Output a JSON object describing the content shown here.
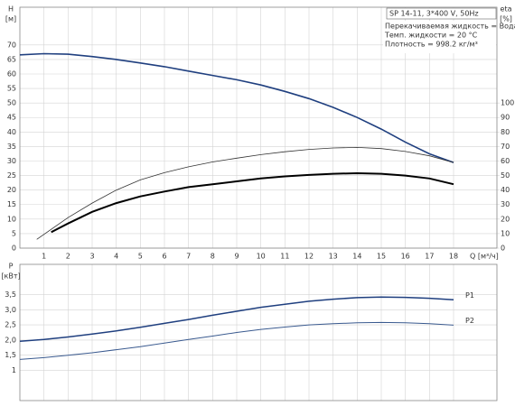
{
  "chart_data": [
    {
      "type": "line",
      "title": "SP 14-11, 3*400 V, 50Hz",
      "annotations": [
        "Перекачиваемая жидкость = Вода",
        "Темп. жидкости = 20 °C",
        "Плотность = 998.2 кг/м³"
      ],
      "ylabel": "H",
      "ylabel_unit": "[м]",
      "y2label": "eta",
      "y2label_unit": "[%]",
      "xlabel": "Q [м³/ч]",
      "xlim": [
        0,
        19.8
      ],
      "xticks": [
        1,
        2,
        3,
        4,
        5,
        6,
        7,
        8,
        9,
        10,
        11,
        12,
        13,
        14,
        15,
        16,
        17,
        18
      ],
      "ylim": [
        0,
        83
      ],
      "yticks": [
        0,
        5,
        10,
        15,
        20,
        25,
        30,
        35,
        40,
        45,
        50,
        55,
        60,
        65,
        70
      ],
      "y2lim": [
        0,
        166
      ],
      "y2ticks": [
        0,
        10,
        20,
        30,
        40,
        50,
        60,
        70,
        80,
        90,
        100
      ],
      "grid": true,
      "show_xtick_labels": true,
      "series": [
        {
          "color": "#1f3f7f",
          "line_width": 1.6,
          "axis": "y",
          "x": [
            0,
            1,
            2,
            3,
            4,
            5,
            6,
            7,
            8,
            9,
            10,
            11,
            12,
            13,
            14,
            15,
            16,
            17,
            18
          ],
          "values": [
            66.6,
            67,
            66.8,
            66,
            65,
            63.8,
            62.5,
            61,
            59.5,
            58,
            56.2,
            54,
            51.5,
            48.5,
            45,
            41,
            36.5,
            32.5,
            29.5
          ]
        },
        {
          "color": "#333333",
          "line_width": 0.8,
          "axis": "y2",
          "x": [
            0.7,
            2,
            3,
            4,
            5,
            6,
            7,
            8,
            9,
            10,
            11,
            12,
            13,
            14,
            15,
            16,
            17,
            18
          ],
          "values": [
            6,
            21,
            31,
            40,
            47,
            52,
            56,
            59.4,
            62,
            64.4,
            66.4,
            68,
            69,
            69.4,
            68.6,
            66.6,
            63.6,
            59
          ]
        },
        {
          "color": "#000000",
          "line_width": 2,
          "axis": "y2",
          "x": [
            1.3,
            2,
            3,
            4,
            5,
            6,
            7,
            8,
            9,
            10,
            11,
            12,
            13,
            14,
            15,
            16,
            17,
            18
          ],
          "values": [
            11,
            17,
            25,
            31,
            35.6,
            39,
            42,
            44,
            46,
            48,
            49.4,
            50.4,
            51.2,
            51.6,
            51.2,
            50,
            48,
            44
          ]
        }
      ]
    },
    {
      "type": "line",
      "ylabel": "P",
      "ylabel_unit": "[кВт]",
      "xlim": [
        0,
        19.8
      ],
      "xticks": [
        1,
        2,
        3,
        4,
        5,
        6,
        7,
        8,
        9,
        10,
        11,
        12,
        13,
        14,
        15,
        16,
        17,
        18
      ],
      "ylim": [
        0,
        4.5
      ],
      "yticks": [
        1,
        {
          "value": 1.5,
          "label": "1,5"
        },
        {
          "value": 2,
          "label": "2,0"
        },
        {
          "value": 2.5,
          "label": "2,5"
        },
        {
          "value": 3,
          "label": "3,0"
        },
        {
          "value": 3.5,
          "label": "3,5"
        }
      ],
      "grid": true,
      "show_xtick_labels": false,
      "series": [
        {
          "name": "P1",
          "color": "#1f3f7f",
          "line_width": 1.5,
          "x": [
            0,
            1,
            2,
            3,
            4,
            5,
            6,
            7,
            8,
            9,
            10,
            11,
            12,
            13,
            14,
            15,
            16,
            17,
            18
          ],
          "values": [
            1.96,
            2.02,
            2.1,
            2.2,
            2.3,
            2.42,
            2.55,
            2.68,
            2.82,
            2.95,
            3.08,
            3.18,
            3.28,
            3.35,
            3.4,
            3.42,
            3.41,
            3.38,
            3.33
          ]
        },
        {
          "name": "P2",
          "color": "#3a5a8f",
          "line_width": 1,
          "x": [
            0,
            1,
            2,
            3,
            4,
            5,
            6,
            7,
            8,
            9,
            10,
            11,
            12,
            13,
            14,
            15,
            16,
            17,
            18
          ],
          "values": [
            1.36,
            1.42,
            1.5,
            1.58,
            1.68,
            1.78,
            1.9,
            2.02,
            2.13,
            2.25,
            2.35,
            2.43,
            2.5,
            2.54,
            2.57,
            2.58,
            2.57,
            2.54,
            2.49
          ]
        }
      ]
    }
  ]
}
